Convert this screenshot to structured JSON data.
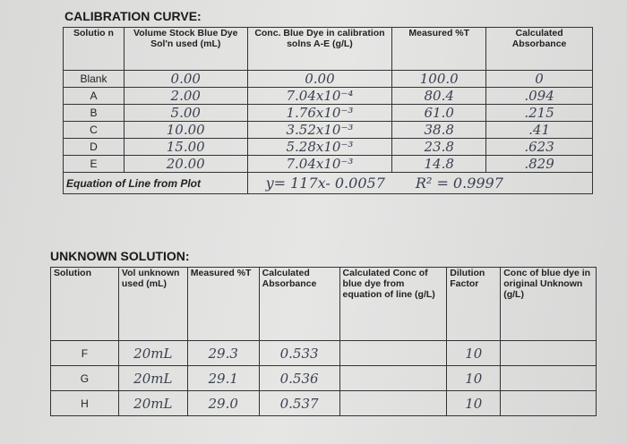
{
  "calibration": {
    "title": "CALIBRATION CURVE:",
    "headers": [
      "Solutio n",
      "Volume Stock Blue Dye Sol'n used (mL)",
      "Conc. Blue Dye in calibration solns A-E (g/L)",
      "Measured %T",
      "Calculated Absorbance"
    ],
    "rows": [
      [
        "Blank",
        "0.00",
        "0.00",
        "100.0",
        "0"
      ],
      [
        "A",
        "2.00",
        "7.04x10⁻⁴",
        "80.4",
        ".094"
      ],
      [
        "B",
        "5.00",
        "1.76x10⁻³",
        "61.0",
        ".215"
      ],
      [
        "C",
        "10.00",
        "3.52x10⁻³",
        "38.8",
        ".41"
      ],
      [
        "D",
        "15.00",
        "5.28x10⁻³",
        "23.8",
        ".623"
      ],
      [
        "E",
        "20.00",
        "7.04x10⁻³",
        "14.8",
        ".829"
      ]
    ],
    "equation_label": "Equation of Line from Plot",
    "equation": "y= 117x- 0.0057",
    "r_squared": "R² = 0.9997"
  },
  "unknown": {
    "title": "UNKNOWN SOLUTION:",
    "headers": [
      "Solution",
      "Vol unknown used (mL)",
      "Measured %T",
      "Calculated Absorbance",
      "Calculated Conc of blue dye from equation of line (g/L)",
      "Dilution Factor",
      "Conc of blue dye in original Unknown (g/L)"
    ],
    "rows": [
      {
        "solution": "F",
        "volume": "20mL",
        "percent_t": "29.3",
        "absorbance": "0.533",
        "dilution": "10"
      },
      {
        "solution": "G",
        "volume": "20mL",
        "percent_t": "29.1",
        "absorbance": "0.536",
        "dilution": "10"
      },
      {
        "solution": "H",
        "volume": "20mL",
        "percent_t": "29.0",
        "absorbance": "0.537",
        "dilution": "10"
      }
    ]
  }
}
